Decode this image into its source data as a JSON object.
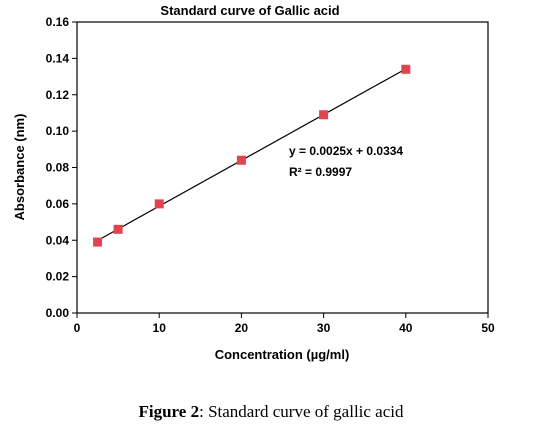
{
  "chart_data": {
    "type": "scatter",
    "title": "Standard curve of Gallic acid",
    "x_label": "Concentration (µg/ml)",
    "y_label": "Absorbance (nm)",
    "series": [
      {
        "name": "Gallic acid",
        "color": "#e0454f",
        "x": [
          2.5,
          5,
          10,
          20,
          30,
          40
        ],
        "values": [
          0.039,
          0.046,
          0.06,
          0.084,
          0.109,
          0.134
        ]
      }
    ],
    "fit_color": "#000000",
    "annotations": [
      "y = 0.0025x + 0.0334",
      "R² = 0.9997"
    ],
    "xlim": [
      0,
      50
    ],
    "xticks": [
      0,
      10,
      20,
      30,
      40,
      50
    ],
    "ylim": [
      0,
      0.16
    ],
    "yticks": [
      {
        "value": 0,
        "label": "0.00"
      },
      {
        "value": 0.02,
        "label": "0.02"
      },
      {
        "value": 0.04,
        "label": "0.04"
      },
      {
        "value": 0.06,
        "label": "0.06"
      },
      {
        "value": 0.08,
        "label": "0.08"
      },
      {
        "value": 0.1,
        "label": "0.10"
      },
      {
        "value": 0.12,
        "label": "0.12"
      },
      {
        "value": 0.14,
        "label": "0.14"
      },
      {
        "value": 0.16,
        "label": "0.16"
      }
    ],
    "grid": false
  },
  "caption": {
    "label": "Figure 2",
    "text": ": Standard curve of gallic acid"
  }
}
